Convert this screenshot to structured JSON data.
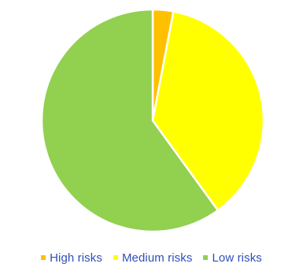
{
  "chart_data": {
    "type": "pie",
    "series": [
      {
        "categories": [
          "High risks",
          "Medium risks",
          "Low risks"
        ],
        "values": [
          3,
          37,
          60
        ]
      }
    ],
    "start_angle_deg": 0,
    "direction": "clockwise",
    "legend_position": "bottom",
    "colors": [
      "#ffc000",
      "#ffff00",
      "#92d050"
    ],
    "slice_separator_color": "#ffffff"
  }
}
